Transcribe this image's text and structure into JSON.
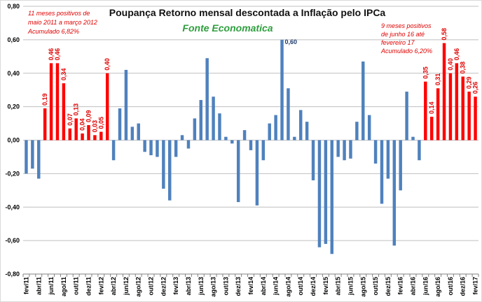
{
  "chart_data": {
    "type": "bar",
    "title": "Poupança Retorno mensal descontada a Inflação pelo IPCa",
    "subtitle": "Fonte Economatica",
    "ylim": [
      -0.8,
      0.8
    ],
    "yticks": [
      "0,80",
      "0,60",
      "0,40",
      "0,20",
      "0,00",
      "-0,20",
      "-0,40",
      "-0,60",
      "-0,80"
    ],
    "ytick_values": [
      0.8,
      0.6,
      0.4,
      0.2,
      0.0,
      -0.2,
      -0.4,
      -0.6,
      -0.8
    ],
    "grid": true,
    "colors": {
      "positive_highlight": "#ff0000",
      "default": "#4f81bd",
      "grid": "#bfbfbf"
    },
    "x_tick_labels": [
      {
        "index": 0,
        "label": "fev/11"
      },
      {
        "index": 2,
        "label": "abr/11"
      },
      {
        "index": 4,
        "label": "jun/11"
      },
      {
        "index": 6,
        "label": "ago/11"
      },
      {
        "index": 8,
        "label": "out/11"
      },
      {
        "index": 10,
        "label": "dez/11"
      },
      {
        "index": 12,
        "label": "fev/12"
      },
      {
        "index": 14,
        "label": "abr/12"
      },
      {
        "index": 16,
        "label": "jun/12"
      },
      {
        "index": 18,
        "label": "ago/12"
      },
      {
        "index": 20,
        "label": "out/12"
      },
      {
        "index": 22,
        "label": "dez/12"
      },
      {
        "index": 24,
        "label": "fev/13"
      },
      {
        "index": 26,
        "label": "abr/13"
      },
      {
        "index": 28,
        "label": "jun/13"
      },
      {
        "index": 30,
        "label": "ago/13"
      },
      {
        "index": 32,
        "label": "out/13"
      },
      {
        "index": 34,
        "label": "dez/13"
      },
      {
        "index": 36,
        "label": "fev/14"
      },
      {
        "index": 38,
        "label": "abr/14"
      },
      {
        "index": 40,
        "label": "jun/14"
      },
      {
        "index": 42,
        "label": "ago/14"
      },
      {
        "index": 44,
        "label": "out/14"
      },
      {
        "index": 46,
        "label": "dez/14"
      },
      {
        "index": 48,
        "label": "fev/15"
      },
      {
        "index": 50,
        "label": "abr/15"
      },
      {
        "index": 52,
        "label": "jun/15"
      },
      {
        "index": 54,
        "label": "ago/15"
      },
      {
        "index": 56,
        "label": "out/15"
      },
      {
        "index": 58,
        "label": "dez/15"
      },
      {
        "index": 60,
        "label": "fev/16"
      },
      {
        "index": 62,
        "label": "abr/16"
      },
      {
        "index": 64,
        "label": "jun/16"
      },
      {
        "index": 66,
        "label": "ago/16"
      },
      {
        "index": 68,
        "label": "out/16"
      },
      {
        "index": 70,
        "label": "dez/16"
      },
      {
        "index": 72,
        "label": "fev/17"
      }
    ],
    "series": [
      {
        "values": [
          -0.2,
          -0.17,
          -0.23,
          0.19,
          0.46,
          0.46,
          0.34,
          0.07,
          0.13,
          0.04,
          0.09,
          0.03,
          0.05,
          0.4,
          -0.12,
          0.19,
          0.42,
          0.08,
          0.1,
          -0.07,
          -0.09,
          -0.1,
          -0.29,
          -0.36,
          -0.1,
          0.03,
          -0.05,
          0.13,
          0.24,
          0.49,
          0.26,
          0.16,
          0.02,
          -0.02,
          -0.37,
          0.06,
          -0.06,
          -0.39,
          -0.12,
          0.1,
          0.15,
          0.6,
          0.31,
          0.02,
          0.18,
          0.11,
          -0.24,
          -0.64,
          -0.62,
          -0.68,
          -0.1,
          -0.12,
          -0.11,
          0.11,
          0.47,
          0.15,
          -0.14,
          -0.38,
          -0.23,
          -0.63,
          -0.3,
          0.29,
          0.02,
          -0.12,
          0.35,
          0.14,
          0.31,
          0.58,
          0.4,
          0.46,
          0.38,
          0.29,
          0.26
        ]
      }
    ],
    "highlight_ranges": [
      [
        3,
        13
      ],
      [
        64,
        72
      ]
    ],
    "data_labels": [
      {
        "index": 3,
        "text": "0,19",
        "color": "red"
      },
      {
        "index": 4,
        "text": "0,46",
        "color": "red"
      },
      {
        "index": 5,
        "text": "0,46",
        "color": "red"
      },
      {
        "index": 6,
        "text": "0,34",
        "color": "red"
      },
      {
        "index": 7,
        "text": "0,07",
        "color": "red"
      },
      {
        "index": 8,
        "text": "0,13",
        "color": "red"
      },
      {
        "index": 9,
        "text": "0,04",
        "color": "red"
      },
      {
        "index": 10,
        "text": "0,09",
        "color": "red"
      },
      {
        "index": 11,
        "text": "0,03",
        "color": "red"
      },
      {
        "index": 12,
        "text": "0,05",
        "color": "red"
      },
      {
        "index": 13,
        "text": "0,40",
        "color": "red"
      },
      {
        "index": 41,
        "text": "0,60",
        "color": "blue"
      },
      {
        "index": 64,
        "text": "0,35",
        "color": "red"
      },
      {
        "index": 65,
        "text": "0,14",
        "color": "red"
      },
      {
        "index": 66,
        "text": "0,31",
        "color": "red"
      },
      {
        "index": 67,
        "text": "0,58",
        "color": "red"
      },
      {
        "index": 68,
        "text": "0,40",
        "color": "red"
      },
      {
        "index": 69,
        "text": "0,46",
        "color": "red"
      },
      {
        "index": 70,
        "text": "0,38",
        "color": "red"
      },
      {
        "index": 71,
        "text": "0,29",
        "color": "red"
      },
      {
        "index": 72,
        "text": "0,26",
        "color": "red"
      }
    ],
    "annotations": [
      {
        "id": "left",
        "lines": [
          "11 meses positivos de",
          "maio 2011 a março 2012",
          "Acumulado 6,82%"
        ]
      },
      {
        "id": "right",
        "lines": [
          "9 meses positivos",
          "de junho 16 até",
          "fevereiro 17",
          "Acumulado 6,20%"
        ]
      }
    ]
  }
}
